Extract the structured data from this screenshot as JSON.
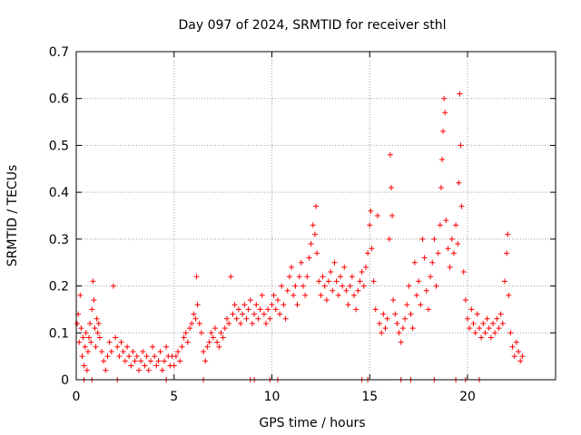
{
  "chart_data": {
    "type": "scatter",
    "title": "Day 097 of 2024, SRMTID for receiver sthl",
    "xlabel": "GPS time / hours",
    "ylabel": "SRMTID / TECUs",
    "xlim": [
      0,
      24.5
    ],
    "ylim": [
      0,
      0.7
    ],
    "xticks": [
      0,
      5,
      10,
      15,
      20
    ],
    "xtick_labels": [
      "0",
      "5",
      "10",
      "15",
      "20"
    ],
    "yticks": [
      0,
      0.1,
      0.2,
      0.3,
      0.4,
      0.5,
      0.6,
      0.7
    ],
    "ytick_labels": [
      "0",
      "0.1",
      "0.2",
      "0.3",
      "0.4",
      "0.5",
      "0.6",
      "0.7"
    ],
    "grid": true,
    "marker": "plus",
    "color": "#ff0000",
    "series": [
      {
        "name": "SRMTID",
        "points": [
          [
            0.05,
            0.12
          ],
          [
            0.1,
            0.14
          ],
          [
            0.15,
            0.08
          ],
          [
            0.2,
            0.18
          ],
          [
            0.25,
            0.11
          ],
          [
            0.3,
            0.05
          ],
          [
            0.35,
            0.09
          ],
          [
            0.4,
            0.03
          ],
          [
            0.45,
            0.07
          ],
          [
            0.5,
            0.1
          ],
          [
            0.55,
            0.02
          ],
          [
            0.6,
            0.06
          ],
          [
            0.65,
            0.09
          ],
          [
            0.7,
            0.12
          ],
          [
            0.75,
            0.08
          ],
          [
            0.8,
            0.15
          ],
          [
            0.85,
            0.21
          ],
          [
            0.9,
            0.17
          ],
          [
            0.95,
            0.11
          ],
          [
            1.0,
            0.07
          ],
          [
            1.05,
            0.13
          ],
          [
            1.1,
            0.1
          ],
          [
            1.15,
            0.12
          ],
          [
            1.2,
            0.09
          ],
          [
            1.3,
            0.06
          ],
          [
            1.4,
            0.04
          ],
          [
            1.5,
            0.02
          ],
          [
            1.6,
            0.05
          ],
          [
            1.7,
            0.08
          ],
          [
            1.8,
            0.06
          ],
          [
            1.9,
            0.2
          ],
          [
            2.0,
            0.09
          ],
          [
            2.1,
            0.07
          ],
          [
            2.2,
            0.05
          ],
          [
            2.3,
            0.08
          ],
          [
            2.4,
            0.06
          ],
          [
            2.5,
            0.04
          ],
          [
            2.6,
            0.07
          ],
          [
            2.7,
            0.05
          ],
          [
            2.8,
            0.03
          ],
          [
            2.9,
            0.06
          ],
          [
            3.0,
            0.04
          ],
          [
            3.1,
            0.05
          ],
          [
            3.2,
            0.02
          ],
          [
            3.3,
            0.04
          ],
          [
            3.4,
            0.06
          ],
          [
            3.5,
            0.03
          ],
          [
            3.6,
            0.05
          ],
          [
            3.7,
            0.02
          ],
          [
            3.8,
            0.04
          ],
          [
            3.9,
            0.07
          ],
          [
            4.0,
            0.05
          ],
          [
            4.1,
            0.03
          ],
          [
            4.2,
            0.04
          ],
          [
            4.3,
            0.06
          ],
          [
            4.4,
            0.02
          ],
          [
            4.5,
            0.04
          ],
          [
            4.6,
            0.07
          ],
          [
            4.7,
            0.05
          ],
          [
            4.8,
            0.03
          ],
          [
            4.9,
            0.05
          ],
          [
            5.0,
            0.03
          ],
          [
            5.1,
            0.05
          ],
          [
            5.2,
            0.06
          ],
          [
            5.3,
            0.04
          ],
          [
            5.4,
            0.07
          ],
          [
            5.5,
            0.09
          ],
          [
            5.6,
            0.1
          ],
          [
            5.7,
            0.08
          ],
          [
            5.8,
            0.11
          ],
          [
            5.9,
            0.12
          ],
          [
            6.0,
            0.14
          ],
          [
            6.1,
            0.13
          ],
          [
            6.15,
            0.22
          ],
          [
            6.2,
            0.16
          ],
          [
            6.3,
            0.12
          ],
          [
            6.4,
            0.1
          ],
          [
            6.5,
            0.06
          ],
          [
            6.6,
            0.04
          ],
          [
            6.7,
            0.07
          ],
          [
            6.8,
            0.08
          ],
          [
            6.9,
            0.1
          ],
          [
            7.0,
            0.09
          ],
          [
            7.1,
            0.11
          ],
          [
            7.2,
            0.08
          ],
          [
            7.3,
            0.07
          ],
          [
            7.4,
            0.1
          ],
          [
            7.5,
            0.09
          ],
          [
            7.6,
            0.11
          ],
          [
            7.7,
            0.13
          ],
          [
            7.8,
            0.12
          ],
          [
            7.9,
            0.22
          ],
          [
            8.0,
            0.14
          ],
          [
            8.1,
            0.16
          ],
          [
            8.2,
            0.13
          ],
          [
            8.3,
            0.15
          ],
          [
            8.4,
            0.12
          ],
          [
            8.5,
            0.14
          ],
          [
            8.6,
            0.16
          ],
          [
            8.7,
            0.13
          ],
          [
            8.8,
            0.15
          ],
          [
            8.9,
            0.17
          ],
          [
            9.0,
            0.12
          ],
          [
            9.1,
            0.14
          ],
          [
            9.2,
            0.16
          ],
          [
            9.3,
            0.13
          ],
          [
            9.4,
            0.15
          ],
          [
            9.5,
            0.18
          ],
          [
            9.6,
            0.14
          ],
          [
            9.7,
            0.12
          ],
          [
            9.8,
            0.15
          ],
          [
            9.9,
            0.13
          ],
          [
            10.0,
            0.16
          ],
          [
            10.1,
            0.18
          ],
          [
            10.2,
            0.15
          ],
          [
            10.3,
            0.17
          ],
          [
            10.4,
            0.14
          ],
          [
            10.5,
            0.2
          ],
          [
            10.6,
            0.16
          ],
          [
            10.7,
            0.13
          ],
          [
            10.8,
            0.19
          ],
          [
            10.9,
            0.22
          ],
          [
            11.0,
            0.24
          ],
          [
            11.1,
            0.18
          ],
          [
            11.2,
            0.2
          ],
          [
            11.3,
            0.16
          ],
          [
            11.4,
            0.22
          ],
          [
            11.5,
            0.25
          ],
          [
            11.6,
            0.2
          ],
          [
            11.7,
            0.18
          ],
          [
            11.8,
            0.22
          ],
          [
            11.9,
            0.26
          ],
          [
            12.0,
            0.29
          ],
          [
            12.1,
            0.33
          ],
          [
            12.2,
            0.31
          ],
          [
            12.25,
            0.37
          ],
          [
            12.3,
            0.27
          ],
          [
            12.4,
            0.21
          ],
          [
            12.5,
            0.18
          ],
          [
            12.6,
            0.22
          ],
          [
            12.7,
            0.2
          ],
          [
            12.8,
            0.17
          ],
          [
            12.9,
            0.21
          ],
          [
            13.0,
            0.23
          ],
          [
            13.1,
            0.19
          ],
          [
            13.2,
            0.25
          ],
          [
            13.3,
            0.21
          ],
          [
            13.4,
            0.18
          ],
          [
            13.5,
            0.22
          ],
          [
            13.6,
            0.2
          ],
          [
            13.7,
            0.24
          ],
          [
            13.8,
            0.19
          ],
          [
            13.9,
            0.16
          ],
          [
            14.0,
            0.2
          ],
          [
            14.1,
            0.22
          ],
          [
            14.2,
            0.18
          ],
          [
            14.3,
            0.15
          ],
          [
            14.4,
            0.19
          ],
          [
            14.5,
            0.21
          ],
          [
            14.6,
            0.23
          ],
          [
            14.7,
            0.2
          ],
          [
            14.8,
            0.24
          ],
          [
            14.9,
            0.27
          ],
          [
            15.0,
            0.33
          ],
          [
            15.05,
            0.36
          ],
          [
            15.1,
            0.28
          ],
          [
            15.2,
            0.21
          ],
          [
            15.3,
            0.15
          ],
          [
            15.4,
            0.35
          ],
          [
            15.5,
            0.12
          ],
          [
            15.6,
            0.1
          ],
          [
            15.7,
            0.14
          ],
          [
            15.8,
            0.11
          ],
          [
            15.9,
            0.13
          ],
          [
            16.0,
            0.3
          ],
          [
            16.05,
            0.48
          ],
          [
            16.1,
            0.41
          ],
          [
            16.15,
            0.35
          ],
          [
            16.2,
            0.17
          ],
          [
            16.3,
            0.14
          ],
          [
            16.4,
            0.12
          ],
          [
            16.5,
            0.1
          ],
          [
            16.6,
            0.08
          ],
          [
            16.7,
            0.11
          ],
          [
            16.8,
            0.13
          ],
          [
            16.9,
            0.16
          ],
          [
            17.0,
            0.2
          ],
          [
            17.1,
            0.14
          ],
          [
            17.2,
            0.11
          ],
          [
            17.3,
            0.25
          ],
          [
            17.4,
            0.18
          ],
          [
            17.5,
            0.21
          ],
          [
            17.6,
            0.16
          ],
          [
            17.7,
            0.3
          ],
          [
            17.8,
            0.26
          ],
          [
            17.9,
            0.19
          ],
          [
            18.0,
            0.15
          ],
          [
            18.1,
            0.22
          ],
          [
            18.2,
            0.25
          ],
          [
            18.3,
            0.3
          ],
          [
            18.4,
            0.2
          ],
          [
            18.5,
            0.27
          ],
          [
            18.6,
            0.33
          ],
          [
            18.65,
            0.41
          ],
          [
            18.7,
            0.47
          ],
          [
            18.75,
            0.53
          ],
          [
            18.8,
            0.6
          ],
          [
            18.85,
            0.57
          ],
          [
            18.9,
            0.34
          ],
          [
            19.0,
            0.28
          ],
          [
            19.1,
            0.24
          ],
          [
            19.2,
            0.3
          ],
          [
            19.3,
            0.27
          ],
          [
            19.4,
            0.33
          ],
          [
            19.5,
            0.29
          ],
          [
            19.55,
            0.42
          ],
          [
            19.6,
            0.61
          ],
          [
            19.65,
            0.5
          ],
          [
            19.7,
            0.37
          ],
          [
            19.8,
            0.23
          ],
          [
            19.9,
            0.17
          ],
          [
            20.0,
            0.13
          ],
          [
            20.1,
            0.11
          ],
          [
            20.2,
            0.15
          ],
          [
            20.3,
            0.12
          ],
          [
            20.4,
            0.1
          ],
          [
            20.5,
            0.14
          ],
          [
            20.6,
            0.11
          ],
          [
            20.7,
            0.09
          ],
          [
            20.8,
            0.12
          ],
          [
            20.9,
            0.1
          ],
          [
            21.0,
            0.13
          ],
          [
            21.1,
            0.11
          ],
          [
            21.2,
            0.09
          ],
          [
            21.3,
            0.12
          ],
          [
            21.4,
            0.1
          ],
          [
            21.5,
            0.13
          ],
          [
            21.6,
            0.11
          ],
          [
            21.7,
            0.14
          ],
          [
            21.8,
            0.12
          ],
          [
            21.9,
            0.21
          ],
          [
            22.0,
            0.27
          ],
          [
            22.05,
            0.31
          ],
          [
            22.1,
            0.18
          ],
          [
            22.2,
            0.1
          ],
          [
            22.3,
            0.07
          ],
          [
            22.4,
            0.05
          ],
          [
            22.5,
            0.08
          ],
          [
            22.6,
            0.06
          ],
          [
            22.7,
            0.04
          ],
          [
            22.8,
            0.05
          ],
          [
            0.4,
            0.0
          ],
          [
            0.8,
            0.0
          ],
          [
            2.1,
            0.0
          ],
          [
            4.6,
            0.0
          ],
          [
            6.5,
            0.0
          ],
          [
            8.9,
            0.0
          ],
          [
            9.1,
            0.0
          ],
          [
            9.9,
            0.0
          ],
          [
            10.3,
            0.0
          ],
          [
            14.6,
            0.0
          ],
          [
            14.9,
            0.0
          ],
          [
            16.6,
            0.0
          ],
          [
            17.1,
            0.0
          ],
          [
            18.3,
            0.0
          ],
          [
            19.4,
            0.0
          ],
          [
            19.9,
            0.0
          ],
          [
            20.6,
            0.0
          ]
        ]
      }
    ]
  }
}
